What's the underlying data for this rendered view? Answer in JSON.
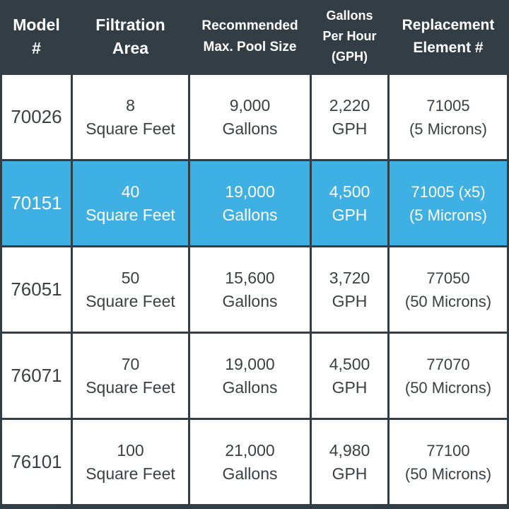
{
  "headers": {
    "model": "Model\n#",
    "area": "Filtration\nArea",
    "pool": "Recommended\nMax. Pool Size",
    "gph": "Gallons\nPer Hour\n(GPH)",
    "replacement": "Replacement\nElement #"
  },
  "rows": [
    {
      "model": "70026",
      "area": "8\nSquare Feet",
      "pool": "9,000\nGallons",
      "gph": "2,220\nGPH",
      "replacement": "71005\n(5 Microns)",
      "highlighted": false
    },
    {
      "model": "70151",
      "area": "40\nSquare Feet",
      "pool": "19,000\nGallons",
      "gph": "4,500\nGPH",
      "replacement": "71005 (x5)\n(5 Microns)",
      "highlighted": true
    },
    {
      "model": "76051",
      "area": "50\nSquare Feet",
      "pool": "15,600\nGallons",
      "gph": "3,720\nGPH",
      "replacement": "77050\n(50 Microns)",
      "highlighted": false
    },
    {
      "model": "76071",
      "area": "70\nSquare Feet",
      "pool": "19,000\nGallons",
      "gph": "4,500\nGPH",
      "replacement": "77070\n(50 Microns)",
      "highlighted": false
    },
    {
      "model": "76101",
      "area": "100\nSquare Feet",
      "pool": "21,000\nGallons",
      "gph": "4,980\nGPH",
      "replacement": "77100\n(50 Microns)",
      "highlighted": false
    }
  ],
  "colors": {
    "header_bg": "#333d45",
    "header_text": "#ffffff",
    "highlight_bg": "#3eb0e4",
    "body_bg": "#ffffff",
    "body_text": "#3a3f44"
  }
}
